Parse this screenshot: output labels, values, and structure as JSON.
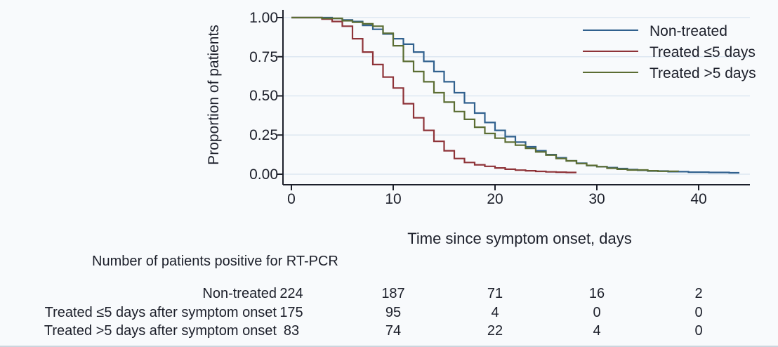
{
  "colors": {
    "non_treated": "#31618e",
    "treated_le5": "#8e3338",
    "treated_gt5": "#5b6d33",
    "grid": "#dde7f1",
    "axis": "#1c1f2a",
    "background": "#f8fafc"
  },
  "chart_data": {
    "type": "line",
    "subtype": "kaplan-meier-step",
    "xlabel": "Time since symptom onset, days",
    "ylabel": "Proportion of patients",
    "xlim": [
      0,
      45
    ],
    "ylim": [
      0,
      1
    ],
    "xticks": [
      "0",
      "10",
      "20",
      "30",
      "40"
    ],
    "xtick_values": [
      0,
      10,
      20,
      30,
      40
    ],
    "yticks": [
      "0.00",
      "0.25",
      "0.50",
      "0.75",
      "1.00"
    ],
    "ytick_values": [
      0,
      0.25,
      0.5,
      0.75,
      1.0
    ],
    "grid": true,
    "legend_position": "top-right",
    "series": [
      {
        "name": "Non-treated",
        "color_key": "non_treated",
        "points": [
          [
            0,
            1.0
          ],
          [
            4,
            0.995
          ],
          [
            5,
            0.985
          ],
          [
            6,
            0.975
          ],
          [
            7,
            0.95
          ],
          [
            8,
            0.925
          ],
          [
            9,
            0.895
          ],
          [
            10,
            0.865
          ],
          [
            11,
            0.83
          ],
          [
            12,
            0.78
          ],
          [
            13,
            0.72
          ],
          [
            14,
            0.655
          ],
          [
            15,
            0.59
          ],
          [
            16,
            0.52
          ],
          [
            17,
            0.455
          ],
          [
            18,
            0.39
          ],
          [
            19,
            0.33
          ],
          [
            20,
            0.28
          ],
          [
            21,
            0.24
          ],
          [
            22,
            0.205
          ],
          [
            23,
            0.175
          ],
          [
            24,
            0.15
          ],
          [
            25,
            0.125
          ],
          [
            26,
            0.105
          ],
          [
            27,
            0.085
          ],
          [
            28,
            0.07
          ],
          [
            29,
            0.055
          ],
          [
            30,
            0.048
          ],
          [
            31,
            0.042
          ],
          [
            32,
            0.036
          ],
          [
            33,
            0.03
          ],
          [
            34,
            0.025
          ],
          [
            35,
            0.02
          ],
          [
            37,
            0.016
          ],
          [
            39,
            0.013
          ],
          [
            41,
            0.011
          ],
          [
            43,
            0.009
          ],
          [
            44,
            0.009
          ]
        ]
      },
      {
        "name": "Treated ≤5 days",
        "color_key": "treated_le5",
        "points": [
          [
            0,
            1.0
          ],
          [
            3,
            0.99
          ],
          [
            4,
            0.975
          ],
          [
            5,
            0.945
          ],
          [
            6,
            0.865
          ],
          [
            7,
            0.78
          ],
          [
            8,
            0.7
          ],
          [
            9,
            0.62
          ],
          [
            10,
            0.55
          ],
          [
            11,
            0.45
          ],
          [
            12,
            0.36
          ],
          [
            13,
            0.28
          ],
          [
            14,
            0.21
          ],
          [
            15,
            0.15
          ],
          [
            16,
            0.1
          ],
          [
            17,
            0.075
          ],
          [
            18,
            0.06
          ],
          [
            19,
            0.05
          ],
          [
            20,
            0.04
          ],
          [
            21,
            0.032
          ],
          [
            22,
            0.026
          ],
          [
            23,
            0.022
          ],
          [
            24,
            0.018
          ],
          [
            25,
            0.015
          ],
          [
            26,
            0.013
          ],
          [
            27,
            0.011
          ],
          [
            28,
            0.011
          ]
        ]
      },
      {
        "name": "Treated >5 days",
        "color_key": "treated_gt5",
        "points": [
          [
            0,
            1.0
          ],
          [
            3,
            0.995
          ],
          [
            5,
            0.98
          ],
          [
            6,
            0.97
          ],
          [
            7,
            0.96
          ],
          [
            8,
            0.945
          ],
          [
            9,
            0.9
          ],
          [
            10,
            0.82
          ],
          [
            11,
            0.72
          ],
          [
            12,
            0.655
          ],
          [
            13,
            0.59
          ],
          [
            14,
            0.52
          ],
          [
            15,
            0.46
          ],
          [
            16,
            0.4
          ],
          [
            17,
            0.35
          ],
          [
            18,
            0.3
          ],
          [
            19,
            0.26
          ],
          [
            20,
            0.23
          ],
          [
            21,
            0.205
          ],
          [
            22,
            0.185
          ],
          [
            23,
            0.165
          ],
          [
            24,
            0.142
          ],
          [
            25,
            0.122
          ],
          [
            26,
            0.1
          ],
          [
            27,
            0.085
          ],
          [
            28,
            0.068
          ],
          [
            29,
            0.056
          ],
          [
            30,
            0.048
          ],
          [
            31,
            0.038
          ],
          [
            32,
            0.032
          ],
          [
            33,
            0.027
          ],
          [
            35,
            0.022
          ],
          [
            36,
            0.019
          ],
          [
            38,
            0.018
          ]
        ]
      }
    ]
  },
  "risk_table": {
    "header": "Number of patients positive for RT-PCR",
    "timepoints": [
      0,
      10,
      20,
      30,
      40
    ],
    "rows": [
      {
        "label": "Non-treated",
        "counts": [
          "224",
          "187",
          "71",
          "16",
          "2"
        ]
      },
      {
        "label": "Treated ≤5 days after symptom onset",
        "counts": [
          "175",
          "95",
          "4",
          "0",
          "0"
        ]
      },
      {
        "label": "Treated >5 days after symptom onset",
        "counts": [
          "83",
          "74",
          "22",
          "4",
          "0"
        ]
      }
    ]
  }
}
